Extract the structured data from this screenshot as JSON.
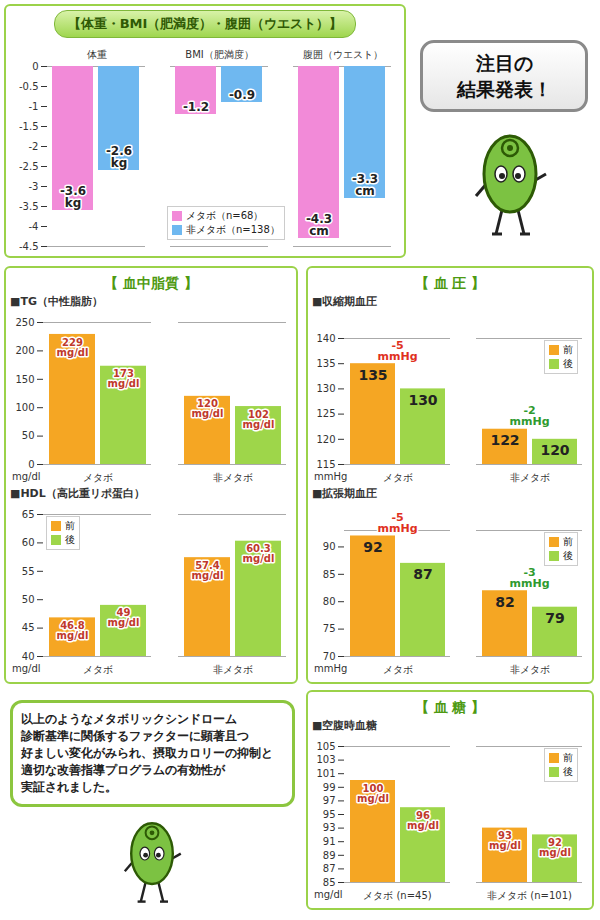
{
  "chart_data": [
    {
      "type": "bar",
      "panel": "【体重・BMI（肥満度）・腹囲（ウエスト）】",
      "categories": [
        "体重",
        "BMI（肥満度）",
        "腹囲（ウエスト）"
      ],
      "series": [
        {
          "name": "メタボ（n=68）",
          "color": "#f28ad8",
          "values": [
            -3.6,
            -1.2,
            -4.3
          ],
          "value_labels": [
            "-3.6 kg",
            "-1.2",
            "-4.3 cm"
          ]
        },
        {
          "name": "非メタボ（n=138）",
          "color": "#6fb8f0",
          "values": [
            -2.6,
            -0.9,
            -3.3
          ],
          "value_labels": [
            "-2.6 kg",
            "-0.9",
            "-3.3 cm"
          ]
        }
      ],
      "ylim": [
        -4.5,
        0
      ],
      "yticks": [
        0,
        -0.5,
        -1,
        -1.5,
        -2,
        -2.5,
        -3,
        -3.5,
        -4,
        -4.5
      ],
      "grid": false,
      "data_labels": true,
      "legend": "bottom"
    },
    {
      "type": "bar",
      "panel": "【 血中脂質 】",
      "title": "■TG（中性脂肪）",
      "ylabel": "mg/dl",
      "categories": [
        "メタボ",
        "非メタボ"
      ],
      "series": [
        {
          "name": "前",
          "color": "#f5a623",
          "values": [
            229,
            120
          ],
          "value_labels": [
            "229 mg/dl",
            "120 mg/dl"
          ]
        },
        {
          "name": "後",
          "color": "#9ed64a",
          "values": [
            173,
            102
          ],
          "value_labels": [
            "173 mg/dl",
            "102 mg/dl"
          ]
        }
      ],
      "ylim": [
        0,
        250
      ],
      "yticks": [
        0,
        50,
        100,
        150,
        200,
        250
      ],
      "grid": false,
      "data_labels": true
    },
    {
      "type": "bar",
      "panel": "【 血中脂質 】",
      "title": "■HDL（高比重リポ蛋白）",
      "ylabel": "mg/dl",
      "categories": [
        "メタボ",
        "非メタボ"
      ],
      "series": [
        {
          "name": "前",
          "color": "#f5a623",
          "values": [
            46.8,
            57.4
          ],
          "value_labels": [
            "46.8 mg/dl",
            "57.4 mg/dl"
          ]
        },
        {
          "name": "後",
          "color": "#9ed64a",
          "values": [
            49,
            60.3
          ],
          "value_labels": [
            "49 mg/dl",
            "60.3 mg/dl"
          ]
        }
      ],
      "ylim": [
        40,
        65
      ],
      "yticks": [
        40,
        45,
        50,
        55,
        60,
        65
      ],
      "grid": false,
      "data_labels": true,
      "legend": "top-left"
    },
    {
      "type": "bar",
      "panel": "【 血 圧 】",
      "title": "■収縮期血圧",
      "ylabel": "mmHg",
      "categories": [
        "メタボ",
        "非メタボ"
      ],
      "series": [
        {
          "name": "前",
          "color": "#f5a623",
          "values": [
            135,
            122
          ]
        },
        {
          "name": "後",
          "color": "#9ed64a",
          "values": [
            130,
            120
          ]
        }
      ],
      "annotations": [
        "-5 mmHg",
        "-2 mmHg"
      ],
      "ylim": [
        115,
        140
      ],
      "yticks": [
        115,
        120,
        125,
        130,
        135,
        140
      ],
      "grid": false,
      "data_labels": true,
      "legend": "top-right"
    },
    {
      "type": "bar",
      "panel": "【 血 圧 】",
      "title": "■拡張期血圧",
      "ylabel": "mmHg",
      "categories": [
        "メタボ",
        "非メタボ"
      ],
      "series": [
        {
          "name": "前",
          "color": "#f5a623",
          "values": [
            92,
            82
          ]
        },
        {
          "name": "後",
          "color": "#9ed64a",
          "values": [
            87,
            79
          ]
        }
      ],
      "annotations": [
        "-5 mmHg",
        "-3 mmHg"
      ],
      "ylim": [
        70,
        93
      ],
      "yticks": [
        70,
        75,
        80,
        85,
        90
      ],
      "grid": false,
      "data_labels": true,
      "legend": "top-right"
    },
    {
      "type": "bar",
      "panel": "【 血 糖 】",
      "title": "■空腹時血糖",
      "ylabel": "mg/dl",
      "categories": [
        "メタボ (n=45)",
        "非メタボ (n=101)"
      ],
      "series": [
        {
          "name": "前",
          "color": "#f5a623",
          "values": [
            100,
            93
          ],
          "value_labels": [
            "100 mg/dl",
            "93 mg/dl"
          ]
        },
        {
          "name": "後",
          "color": "#9ed64a",
          "values": [
            96,
            92
          ],
          "value_labels": [
            "96 mg/dl",
            "92 mg/dl"
          ]
        }
      ],
      "ylim": [
        85,
        105
      ],
      "yticks": [
        85,
        87,
        89,
        91,
        93,
        95,
        97,
        99,
        101,
        103,
        105
      ],
      "grid": false,
      "data_labels": true,
      "legend": "top-right"
    }
  ],
  "callout": [
    "注目の",
    "結果発表！"
  ],
  "conclusion": [
    "以上のようなメタボリックシンドローム",
    "診断基準に関係するファクターに顕著且つ",
    "好ましい変化がみられ、摂取カロリーの抑制と",
    "適切な改善指導プログラムの有効性が",
    "実証されました。"
  ]
}
